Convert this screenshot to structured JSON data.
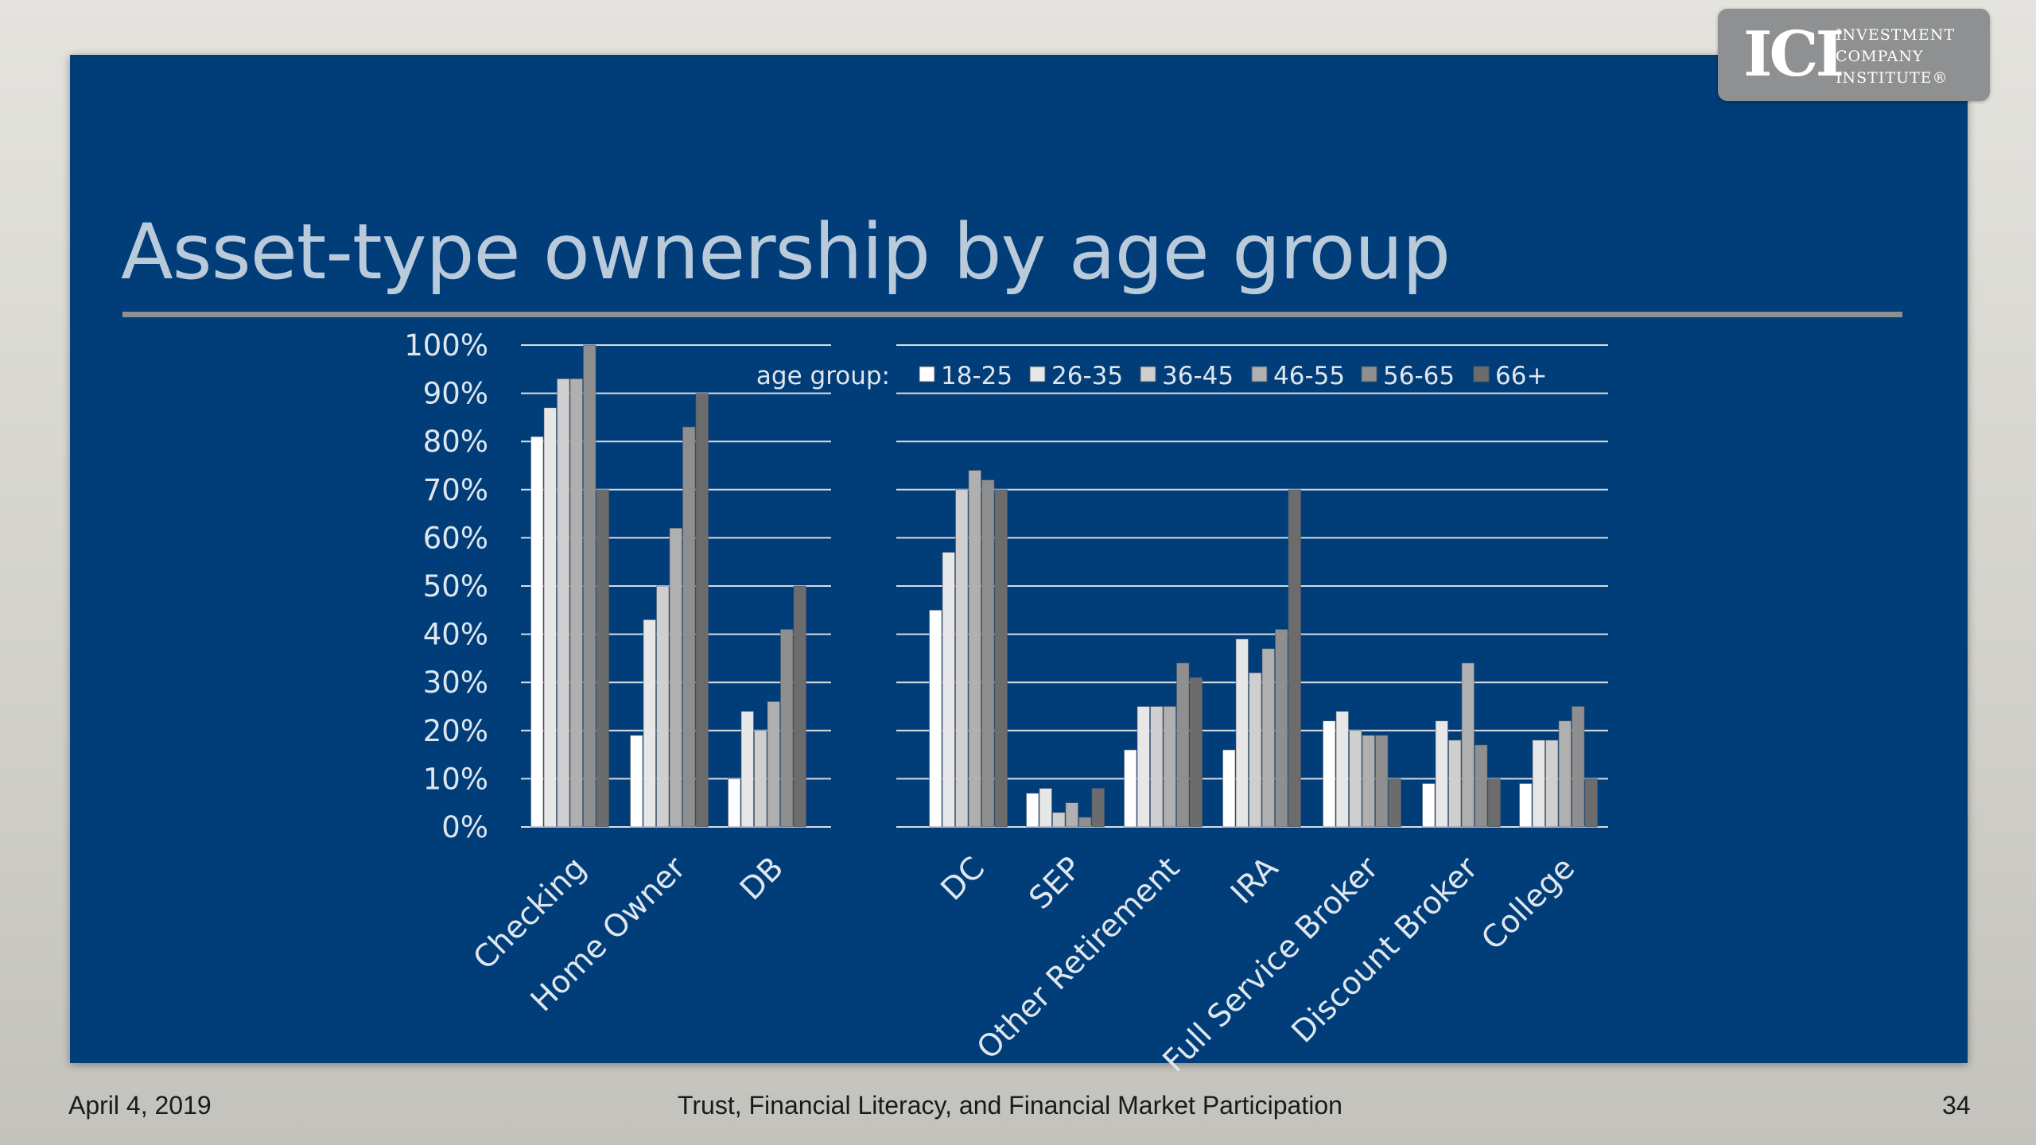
{
  "slide": {
    "title": "Asset-type ownership by age group"
  },
  "logo": {
    "mark": "ICI",
    "lines": [
      "INVESTMENT",
      "COMPANY",
      "INSTITUTE®"
    ]
  },
  "footer": {
    "date": "April 4, 2019",
    "title": "Trust, Financial Literacy, and Financial Market Participation",
    "page": "34"
  },
  "colors": {
    "slide_bg": "#013d78",
    "gridline": "#d9dde3",
    "axis_text": "#dfe6ee",
    "series": [
      "#ffffff",
      "#e7e7e7",
      "#cfcfcf",
      "#b0b0b0",
      "#8f8f8f",
      "#6c6c6c"
    ]
  },
  "chart_data": {
    "type": "bar",
    "ylim": [
      0,
      100
    ],
    "yticks": [
      "0%",
      "10%",
      "20%",
      "30%",
      "40%",
      "50%",
      "60%",
      "70%",
      "80%",
      "90%",
      "100%"
    ],
    "legend_title": "age group:",
    "legend_placement": "top",
    "grid": true,
    "categories": [
      "Checking",
      "Home Owner",
      "DB",
      "DC",
      "SEP",
      "Other Retirement",
      "IRA",
      "Full Service Broker",
      "Discount Broker",
      "College"
    ],
    "series": [
      {
        "name": "18-25",
        "values": [
          81,
          19,
          10,
          45,
          7,
          16,
          16,
          22,
          9,
          9
        ]
      },
      {
        "name": "26-35",
        "values": [
          87,
          43,
          24,
          57,
          8,
          25,
          39,
          24,
          22,
          18
        ]
      },
      {
        "name": "36-45",
        "values": [
          93,
          50,
          20,
          70,
          3,
          25,
          32,
          20,
          18,
          18
        ]
      },
      {
        "name": "46-55",
        "values": [
          93,
          62,
          26,
          74,
          5,
          25,
          37,
          19,
          34,
          22
        ]
      },
      {
        "name": "56-65",
        "values": [
          100,
          83,
          41,
          72,
          2,
          34,
          41,
          19,
          17,
          25
        ]
      },
      {
        "name": "66+",
        "values": [
          70,
          90,
          50,
          70,
          8,
          31,
          70,
          10,
          10,
          10
        ]
      }
    ]
  }
}
